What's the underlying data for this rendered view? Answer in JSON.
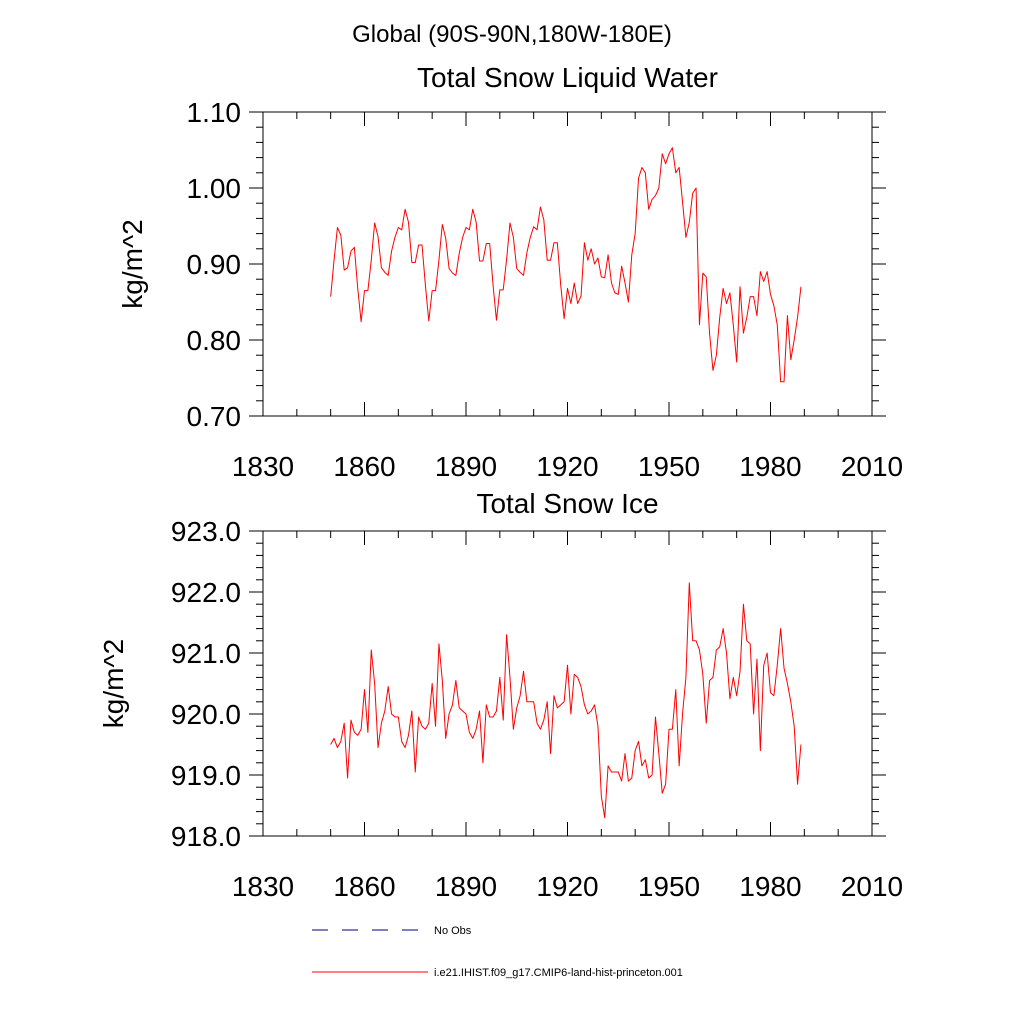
{
  "header": {
    "title": "Global (90S-90N,180W-180E)"
  },
  "legend": {
    "entries": [
      {
        "label": "No Obs",
        "color": "#000080",
        "dash": true
      },
      {
        "label": "i.e21.IHIST.f09_g17.CMIP6-land-hist-princeton.001",
        "color": "#ff0000",
        "dash": false
      }
    ]
  },
  "chart_data": [
    {
      "type": "line",
      "title": "Total Snow Liquid Water",
      "xlabel": "",
      "ylabel": "kg/m^2",
      "xlim": [
        1830,
        2010
      ],
      "ylim": [
        0.7,
        1.1
      ],
      "xticks": [
        1830,
        1860,
        1890,
        1920,
        1950,
        1980,
        2010
      ],
      "xtick_labels": [
        "1830",
        "1860",
        "1890",
        "1920",
        "1950",
        "1980",
        "2010"
      ],
      "yticks": [
        0.7,
        0.8,
        0.9,
        1.0,
        1.1
      ],
      "ytick_labels": [
        "0.70",
        "0.80",
        "0.90",
        "1.00",
        "1.10"
      ],
      "grid": false,
      "series": [
        {
          "name": "i.e21.IHIST.f09_g17.CMIP6-land-hist-princeton.001",
          "color": "#ff0000",
          "x_start": 1850,
          "x_step": 1,
          "values": [
            0.857,
            0.905,
            0.948,
            0.938,
            0.892,
            0.895,
            0.917,
            0.922,
            0.868,
            0.824,
            0.865,
            0.865,
            0.905,
            0.954,
            0.936,
            0.895,
            0.889,
            0.885,
            0.917,
            0.935,
            0.948,
            0.945,
            0.972,
            0.955,
            0.902,
            0.902,
            0.925,
            0.925,
            0.872,
            0.825,
            0.865,
            0.865,
            0.905,
            0.952,
            0.934,
            0.894,
            0.888,
            0.885,
            0.914,
            0.935,
            0.948,
            0.945,
            0.972,
            0.955,
            0.904,
            0.904,
            0.927,
            0.927,
            0.872,
            0.826,
            0.866,
            0.866,
            0.906,
            0.954,
            0.935,
            0.894,
            0.889,
            0.885,
            0.915,
            0.935,
            0.949,
            0.945,
            0.975,
            0.958,
            0.905,
            0.905,
            0.928,
            0.928,
            0.872,
            0.828,
            0.868,
            0.848,
            0.875,
            0.848,
            0.858,
            0.928,
            0.905,
            0.92,
            0.9,
            0.908,
            0.883,
            0.882,
            0.912,
            0.875,
            0.862,
            0.86,
            0.897,
            0.875,
            0.85,
            0.912,
            0.94,
            1.013,
            1.027,
            1.02,
            0.972,
            0.985,
            0.99,
            1.0,
            1.045,
            1.032,
            1.045,
            1.053,
            1.02,
            1.027,
            0.982,
            0.935,
            0.955,
            0.993,
            1.0,
            0.82,
            0.888,
            0.883,
            0.808,
            0.76,
            0.78,
            0.83,
            0.868,
            0.848,
            0.862,
            0.82,
            0.771,
            0.87,
            0.809,
            0.83,
            0.857,
            0.857,
            0.832,
            0.89,
            0.877,
            0.89,
            0.86,
            0.845,
            0.82,
            0.745,
            0.745,
            0.832,
            0.774,
            0.8,
            0.83,
            0.87
          ]
        }
      ]
    },
    {
      "type": "line",
      "title": "Total Snow Ice",
      "xlabel": "",
      "ylabel": "kg/m^2",
      "xlim": [
        1830,
        2010
      ],
      "ylim": [
        918.0,
        923.0
      ],
      "xticks": [
        1830,
        1860,
        1890,
        1920,
        1950,
        1980,
        2010
      ],
      "xtick_labels": [
        "1830",
        "1860",
        "1890",
        "1920",
        "1950",
        "1980",
        "2010"
      ],
      "yticks": [
        918.0,
        919.0,
        920.0,
        921.0,
        922.0,
        923.0
      ],
      "ytick_labels": [
        "918.0",
        "919.0",
        "920.0",
        "921.0",
        "922.0",
        "923.0"
      ],
      "grid": false,
      "series": [
        {
          "name": "i.e21.IHIST.f09_g17.CMIP6-land-hist-princeton.001",
          "color": "#ff0000",
          "x_start": 1850,
          "x_step": 1,
          "values": [
            919.5,
            919.6,
            919.45,
            919.55,
            919.85,
            918.95,
            919.9,
            919.7,
            919.65,
            919.75,
            920.4,
            919.7,
            921.05,
            920.5,
            919.45,
            919.85,
            920.05,
            920.45,
            920.0,
            919.95,
            919.95,
            919.55,
            919.45,
            919.65,
            920.05,
            919.05,
            919.95,
            919.8,
            919.75,
            919.85,
            920.5,
            919.8,
            921.15,
            920.55,
            919.6,
            920.0,
            920.15,
            920.55,
            920.1,
            920.05,
            920.0,
            919.7,
            919.6,
            919.75,
            920.05,
            919.2,
            920.15,
            919.95,
            919.95,
            920.05,
            920.6,
            919.9,
            921.3,
            920.6,
            919.75,
            920.1,
            920.3,
            920.7,
            920.2,
            920.2,
            920.2,
            919.85,
            919.75,
            919.9,
            920.2,
            919.35,
            920.3,
            920.1,
            920.15,
            920.2,
            920.8,
            920.0,
            920.65,
            920.6,
            920.45,
            920.15,
            920.0,
            920.05,
            920.15,
            919.8,
            918.65,
            918.3,
            919.15,
            919.05,
            919.05,
            919.05,
            918.9,
            919.35,
            918.9,
            918.95,
            919.4,
            919.55,
            919.15,
            919.25,
            918.95,
            919.0,
            919.95,
            919.35,
            918.7,
            918.85,
            919.75,
            919.75,
            920.4,
            919.15,
            920.0,
            920.6,
            922.15,
            921.2,
            921.2,
            921.05,
            920.65,
            919.85,
            920.55,
            920.6,
            921.05,
            921.1,
            921.4,
            921.0,
            920.25,
            920.6,
            920.3,
            920.7,
            921.8,
            921.2,
            921.15,
            920.0,
            920.9,
            919.4,
            920.8,
            921.0,
            920.35,
            920.3,
            920.8,
            921.4,
            920.75,
            920.5,
            920.2,
            919.8,
            918.85,
            919.5
          ]
        }
      ]
    }
  ]
}
